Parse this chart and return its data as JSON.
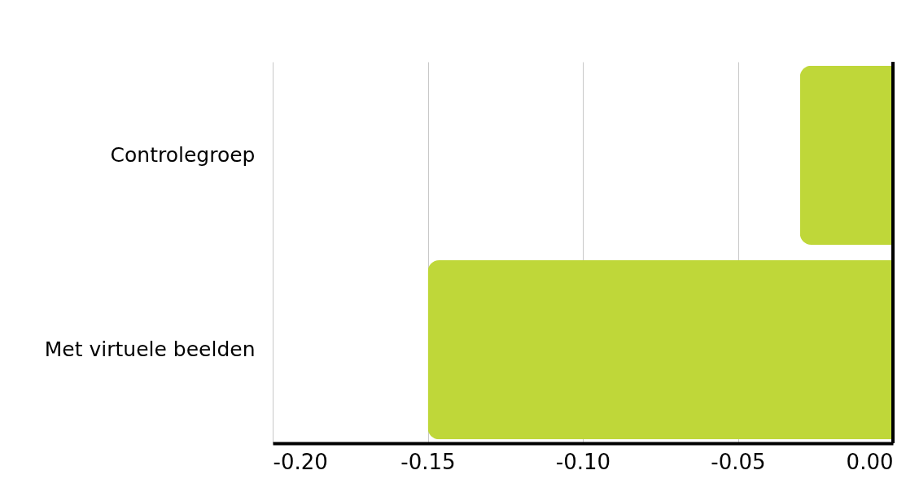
{
  "chart_data": {
    "type": "bar",
    "orientation": "horizontal",
    "categories": [
      "Controlegroep",
      "Met virtuele beelden"
    ],
    "values": [
      -0.03,
      -0.15
    ],
    "color": "#bfd739",
    "xlim": [
      -0.2,
      0
    ],
    "xticks": [
      {
        "value": -0.2,
        "label": "-0.20"
      },
      {
        "value": -0.15,
        "label": "-0.15"
      },
      {
        "value": -0.1,
        "label": "-0.10"
      },
      {
        "value": -0.05,
        "label": "-0.05"
      },
      {
        "value": 0,
        "label": "0.00"
      }
    ],
    "grid": "x",
    "ref_lines": [
      {
        "axis": "x",
        "value": 0,
        "color": "#000000"
      }
    ]
  }
}
